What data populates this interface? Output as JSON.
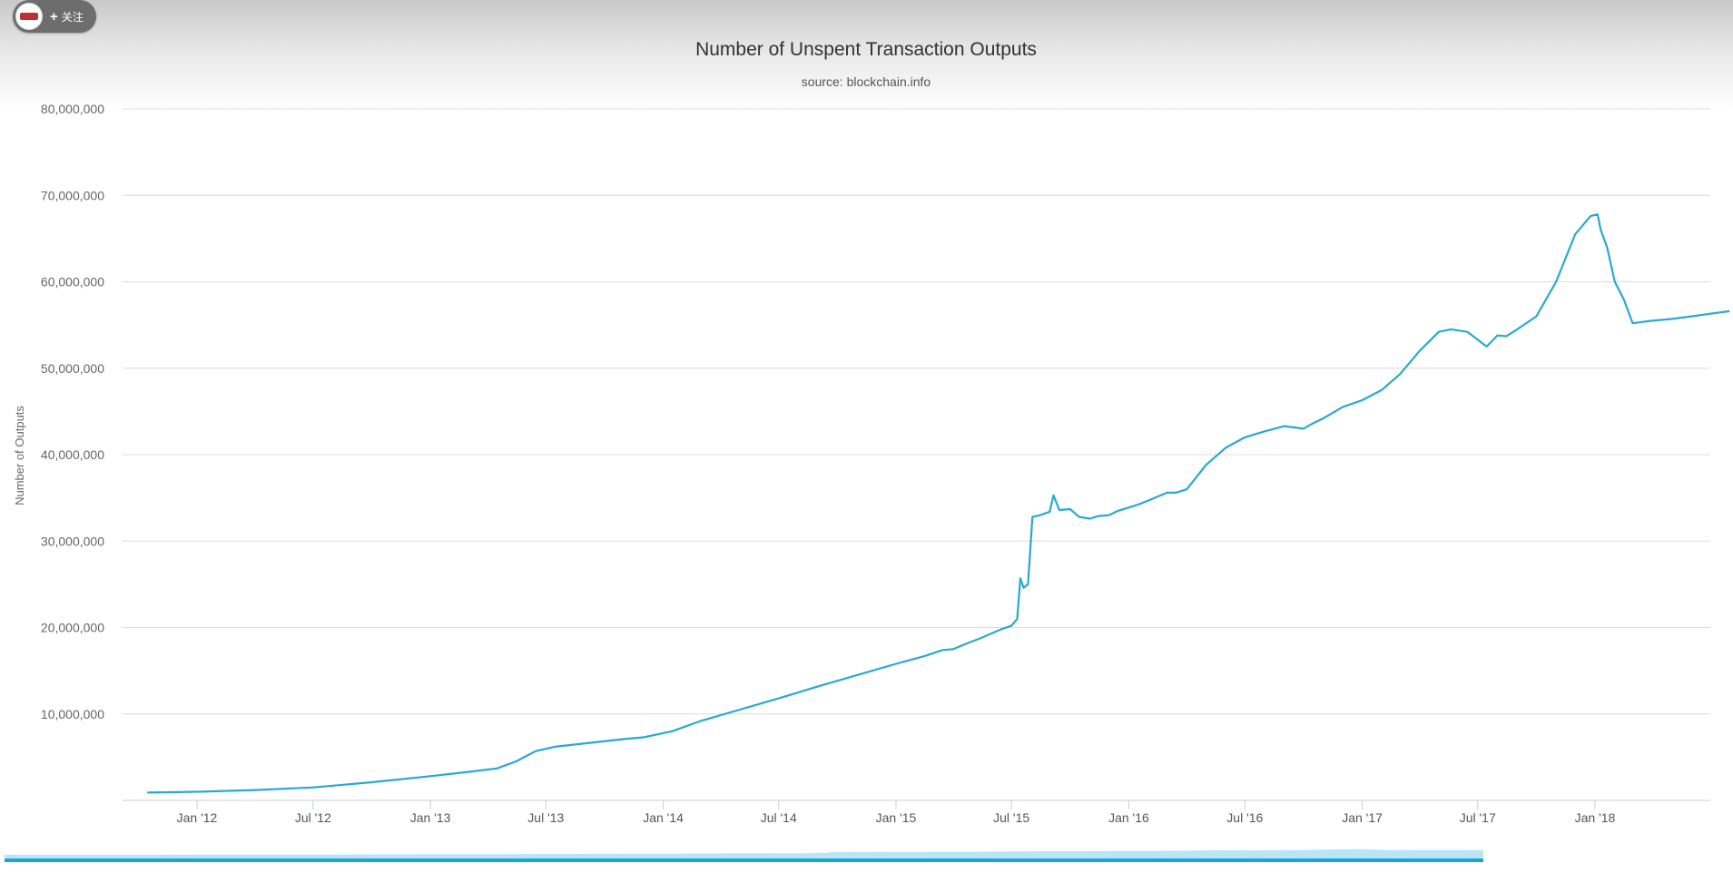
{
  "badge": {
    "plus": "+",
    "label": "关注",
    "avatar_icon": "avatar-logo-icon"
  },
  "chart_data": {
    "type": "line",
    "title": "Number of Unspent Transaction Outputs",
    "subtitle": "source: blockchain.info",
    "xlabel": "",
    "ylabel": "Number of Outputs",
    "ylim": [
      0,
      80000000
    ],
    "xlim": [
      "2011-10-01",
      "2018-10-31"
    ],
    "grid": true,
    "y_ticks": [
      10000000,
      20000000,
      30000000,
      40000000,
      50000000,
      60000000,
      70000000,
      80000000
    ],
    "y_tick_labels": [
      "10,000,000",
      "20,000,000",
      "30,000,000",
      "40,000,000",
      "50,000,000",
      "60,000,000",
      "70,000,000",
      "80,000,000"
    ],
    "x_ticks": [
      "2012-01-01",
      "2012-07-01",
      "2013-01-01",
      "2013-07-01",
      "2014-01-01",
      "2014-07-01",
      "2015-01-01",
      "2015-07-01",
      "2016-01-01",
      "2016-07-01",
      "2017-01-01",
      "2017-07-01",
      "2018-01-01"
    ],
    "x_tick_labels": [
      "Jan '12",
      "Jul '12",
      "Jan '13",
      "Jul '13",
      "Jan '14",
      "Jul '14",
      "Jan '15",
      "Jul '15",
      "Jan '16",
      "Jul '16",
      "Jan '17",
      "Jul '17",
      "Jan '18"
    ],
    "line_color": "#29a9cf",
    "series": [
      {
        "x": [
          "2011-10-15",
          "2012-01-01",
          "2012-04-01",
          "2012-07-01",
          "2012-10-01",
          "2013-01-01",
          "2013-03-01",
          "2013-04-15",
          "2013-05-15",
          "2013-06-15",
          "2013-07-15",
          "2013-09-01",
          "2013-11-01",
          "2013-12-01",
          "2014-01-15",
          "2014-03-01",
          "2014-05-01",
          "2014-07-01",
          "2014-09-01",
          "2014-11-01",
          "2015-01-01",
          "2015-02-15",
          "2015-03-15",
          "2015-04-01",
          "2015-04-20",
          "2015-05-15",
          "2015-06-15",
          "2015-07-01",
          "2015-07-10",
          "2015-07-15",
          "2015-07-20",
          "2015-07-27",
          "2015-08-03",
          "2015-08-15",
          "2015-08-30",
          "2015-09-05",
          "2015-09-14",
          "2015-10-01",
          "2015-10-15",
          "2015-11-01",
          "2015-11-15",
          "2015-12-01",
          "2015-12-15",
          "2016-01-15",
          "2016-02-01",
          "2016-03-01",
          "2016-03-15",
          "2016-04-01",
          "2016-05-01",
          "2016-06-01",
          "2016-07-01",
          "2016-08-01",
          "2016-09-01",
          "2016-10-01",
          "2016-10-15",
          "2016-11-01",
          "2016-11-15",
          "2016-12-01",
          "2017-01-01",
          "2017-02-01",
          "2017-03-01",
          "2017-04-01",
          "2017-05-01",
          "2017-05-20",
          "2017-06-15",
          "2017-07-15",
          "2017-08-01",
          "2017-08-15",
          "2017-09-01",
          "2017-10-01",
          "2017-11-01",
          "2017-12-01",
          "2017-12-25",
          "2018-01-05",
          "2018-01-10",
          "2018-01-20",
          "2018-02-01",
          "2018-02-15",
          "2018-03-01",
          "2018-03-10",
          "2018-04-01",
          "2018-05-01",
          "2018-06-01",
          "2018-07-01",
          "2018-07-31"
        ],
        "values": [
          900000,
          1000000,
          1200000,
          1500000,
          2100000,
          2800000,
          3300000,
          3700000,
          4500000,
          5700000,
          6200000,
          6600000,
          7100000,
          7300000,
          8000000,
          9200000,
          10500000,
          11800000,
          13200000,
          14500000,
          15800000,
          16700000,
          17400000,
          17500000,
          18100000,
          18800000,
          19800000,
          20200000,
          21000000,
          25700000,
          24600000,
          25000000,
          32800000,
          33000000,
          33400000,
          35300000,
          33600000,
          33700000,
          32800000,
          32600000,
          32900000,
          33000000,
          33500000,
          34200000,
          34700000,
          35600000,
          35600000,
          36000000,
          38800000,
          40800000,
          42000000,
          42700000,
          43300000,
          43000000,
          43600000,
          44200000,
          44800000,
          45500000,
          46300000,
          47500000,
          49300000,
          52000000,
          54200000,
          54500000,
          54200000,
          52500000,
          53800000,
          53700000,
          54500000,
          56000000,
          60000000,
          65500000,
          67600000,
          67800000,
          66000000,
          64000000,
          60000000,
          58000000,
          55200000,
          55300000,
          55500000,
          55700000,
          56000000,
          56300000,
          56600000
        ]
      }
    ],
    "navigator_color": "#a8def3"
  }
}
